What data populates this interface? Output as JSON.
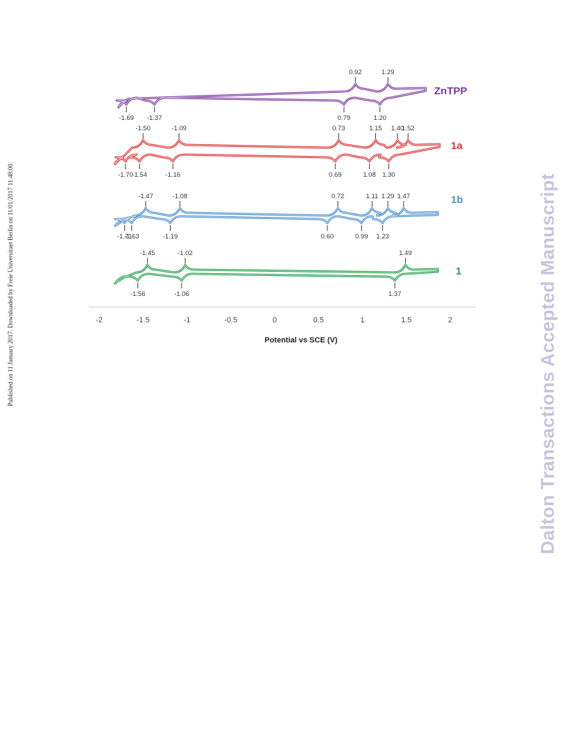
{
  "side_note": "Published on 11 January 2017. Downloaded by Freie Universitaet Berlin on 11/01/2017 11:48:00.",
  "watermark": "Dalton Transactions Accepted Manuscript",
  "chart_data": {
    "type": "line",
    "xlabel": "Potential vs SCE (V)",
    "xlim": [
      -2,
      2
    ],
    "x_ticks": [
      "-2",
      "-1.5",
      "-1",
      "-0.5",
      "0",
      "0.5",
      "1",
      "1.5",
      "2"
    ],
    "grid": false,
    "series": [
      {
        "name": "ZnTPP",
        "color": "#7c3aa0",
        "x_range": [
          -1.78,
          1.72
        ],
        "peaks": [
          {
            "x": 0.92,
            "label": "0.92",
            "branch": "anodic"
          },
          {
            "x": 1.29,
            "label": "1.29",
            "branch": "anodic"
          },
          {
            "x": 0.79,
            "label": "0.79",
            "branch": "cathodic"
          },
          {
            "x": 1.2,
            "label": "1.20",
            "branch": "cathodic"
          },
          {
            "x": -1.69,
            "label": "-1.69",
            "branch": "cathodic"
          },
          {
            "x": -1.37,
            "label": "-1.37",
            "branch": "cathodic"
          }
        ]
      },
      {
        "name": "1a",
        "color": "#e03232",
        "x_range": [
          -1.82,
          1.88
        ],
        "peaks": [
          {
            "x": -1.5,
            "label": "-1.50",
            "branch": "anodic"
          },
          {
            "x": -1.09,
            "label": "-1.09",
            "branch": "anodic"
          },
          {
            "x": 0.73,
            "label": "0.73",
            "branch": "anodic"
          },
          {
            "x": 1.15,
            "label": "1.15",
            "branch": "anodic"
          },
          {
            "x": 1.4,
            "label": "1.40",
            "branch": "anodic"
          },
          {
            "x": 1.52,
            "label": "1.52",
            "branch": "anodic"
          },
          {
            "x": -1.7,
            "label": "-1.70",
            "branch": "cathodic"
          },
          {
            "x": -1.54,
            "label": "-1.54",
            "branch": "cathodic"
          },
          {
            "x": -1.16,
            "label": "-1.16",
            "branch": "cathodic"
          },
          {
            "x": 0.69,
            "label": "0.69",
            "branch": "cathodic"
          },
          {
            "x": 1.08,
            "label": "1.08",
            "branch": "cathodic"
          },
          {
            "x": 1.3,
            "label": "1.30",
            "branch": "cathodic"
          }
        ]
      },
      {
        "name": "1b",
        "color": "#4b8fd1",
        "x_range": [
          -1.82,
          1.86
        ],
        "peaks": [
          {
            "x": -1.47,
            "label": "-1.47",
            "branch": "anodic"
          },
          {
            "x": -1.08,
            "label": "-1.08",
            "branch": "anodic"
          },
          {
            "x": 0.72,
            "label": "0.72",
            "branch": "anodic"
          },
          {
            "x": 1.11,
            "label": "1.11",
            "branch": "anodic"
          },
          {
            "x": 1.29,
            "label": "1.29",
            "branch": "anodic"
          },
          {
            "x": 1.47,
            "label": "1.47",
            "branch": "anodic"
          },
          {
            "x": -1.71,
            "label": "-1.71",
            "branch": "cathodic"
          },
          {
            "x": -1.63,
            "label": "-1.63",
            "branch": "cathodic"
          },
          {
            "x": -1.19,
            "label": "-1.19",
            "branch": "cathodic"
          },
          {
            "x": 0.6,
            "label": "0.60",
            "branch": "cathodic"
          },
          {
            "x": 0.99,
            "label": "0.99",
            "branch": "cathodic"
          },
          {
            "x": 1.23,
            "label": "1.23",
            "branch": "cathodic"
          }
        ]
      },
      {
        "name": "1",
        "color": "#22a04a",
        "x_range": [
          -1.82,
          1.86
        ],
        "peaks": [
          {
            "x": -1.45,
            "label": "-1.45",
            "branch": "anodic"
          },
          {
            "x": -1.02,
            "label": "-1.02",
            "branch": "anodic"
          },
          {
            "x": 1.49,
            "label": "1.49",
            "branch": "anodic"
          },
          {
            "x": -1.56,
            "label": "-1.56",
            "branch": "cathodic"
          },
          {
            "x": -1.06,
            "label": "-1.06",
            "branch": "cathodic"
          },
          {
            "x": 1.37,
            "label": "1.37",
            "branch": "cathodic"
          }
        ]
      }
    ]
  }
}
